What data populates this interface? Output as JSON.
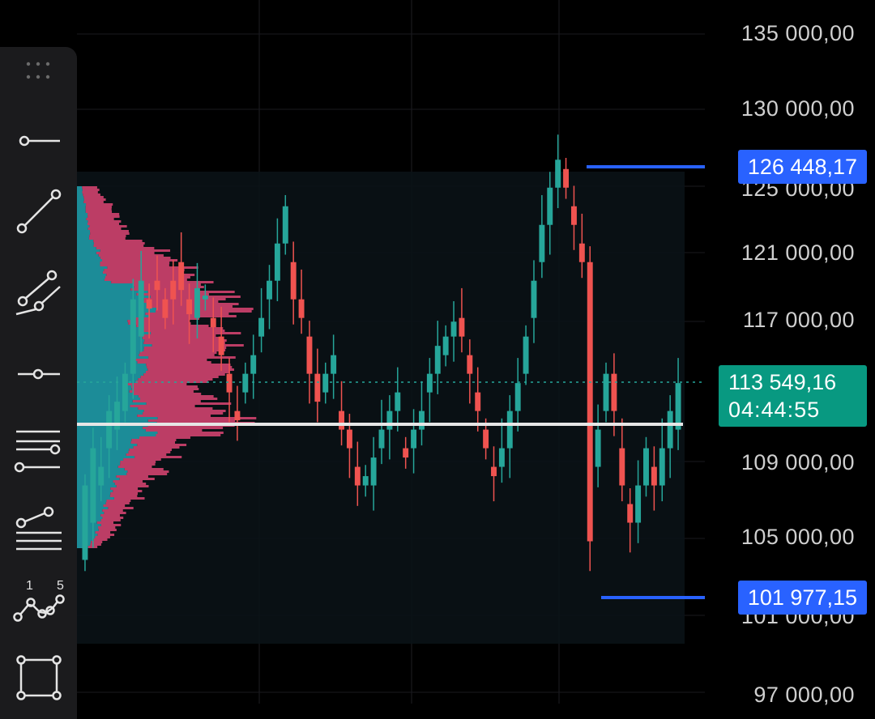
{
  "chart_data": {
    "type": "candlestick",
    "y_axis_ticks": [
      "135 000,00",
      "130 000,00",
      "125 000,00",
      "121 000,00",
      "117 000,00",
      "109 000,00",
      "105 000,00",
      "101 000,00",
      "97 000,00"
    ],
    "range_high": "126 448,17",
    "range_low": "101 977,15",
    "last_price": "113 549,16",
    "countdown": "04:44:55",
    "point_of_control": 111200,
    "colors": {
      "up": "#26a69a",
      "down": "#ef5350",
      "profile_up": "#1f9aa6",
      "profile_down": "#d0426e",
      "range": "#2962ff"
    }
  },
  "toolbar": {
    "tools": [
      {
        "name": "horizontal-ray-tool",
        "icon": "horizontal-ray-icon"
      },
      {
        "name": "trend-line-tool",
        "icon": "trend-line-icon"
      },
      {
        "name": "parallel-channel-tool",
        "icon": "parallel-channel-icon"
      },
      {
        "name": "horizontal-line-tool",
        "icon": "horizontal-line-icon"
      },
      {
        "name": "fib-retracement-tool",
        "icon": "fib-retracement-icon"
      },
      {
        "name": "pitchfork-tool",
        "icon": "pitchfork-icon"
      },
      {
        "name": "xabcd-pattern-tool",
        "icon": "xabcd-pattern-icon"
      },
      {
        "name": "rectangle-tool",
        "icon": "rectangle-icon"
      }
    ],
    "pattern_labels": [
      "1",
      "5"
    ]
  }
}
